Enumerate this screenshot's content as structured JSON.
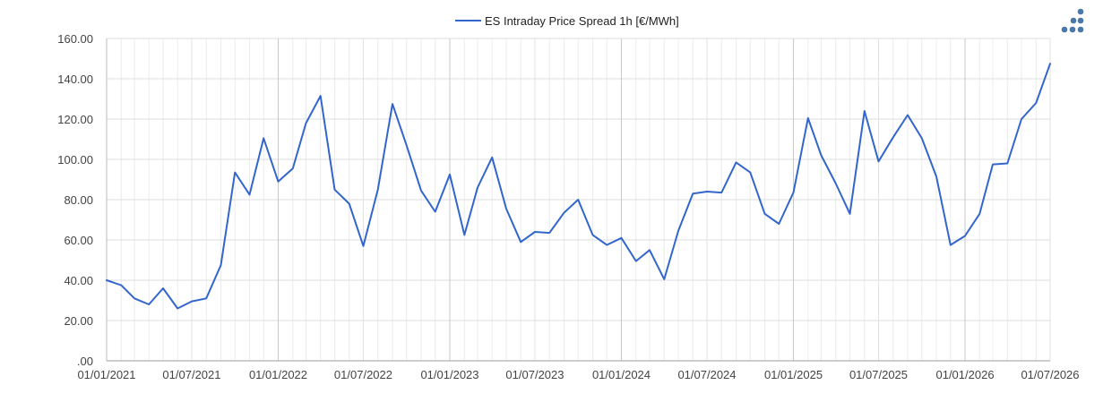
{
  "chart_data": {
    "type": "line",
    "title": "",
    "xlabel": "",
    "ylabel": "",
    "legend_position": "top-center",
    "grid": true,
    "line_color": "#3366cc",
    "y_range": [
      0,
      160
    ],
    "x_range": [
      "01/01/2021",
      "01/07/2026"
    ],
    "y_ticks": [
      0,
      20,
      40,
      60,
      80,
      100,
      120,
      140,
      160
    ],
    "y_tick_labels": [
      ".00",
      "20.00",
      "40.00",
      "60.00",
      "80.00",
      "100.00",
      "120.00",
      "140.00",
      "160.00"
    ],
    "x_tick_labels": [
      "01/01/2021",
      "01/07/2021",
      "01/01/2022",
      "01/07/2022",
      "01/01/2023",
      "01/07/2023",
      "01/01/2024",
      "01/07/2024",
      "01/01/2025",
      "01/07/2025",
      "01/01/2026",
      "01/07/2026"
    ],
    "series": [
      {
        "name": "ES Intraday Price Spread 1h [€/MWh]",
        "x": [
          "01/01/2021",
          "01/02/2021",
          "01/03/2021",
          "01/04/2021",
          "01/05/2021",
          "01/06/2021",
          "01/07/2021",
          "01/08/2021",
          "01/09/2021",
          "01/10/2021",
          "01/11/2021",
          "01/12/2021",
          "01/01/2022",
          "01/02/2022",
          "01/03/2022",
          "01/04/2022",
          "01/05/2022",
          "01/06/2022",
          "01/07/2022",
          "01/08/2022",
          "01/09/2022",
          "01/10/2022",
          "01/11/2022",
          "01/12/2022",
          "01/01/2023",
          "01/02/2023",
          "01/03/2023",
          "01/04/2023",
          "01/05/2023",
          "01/06/2023",
          "01/07/2023",
          "01/08/2023",
          "01/09/2023",
          "01/10/2023",
          "01/11/2023",
          "01/12/2023",
          "01/01/2024",
          "01/02/2024",
          "01/03/2024",
          "01/04/2024",
          "01/05/2024",
          "01/06/2024",
          "01/07/2024",
          "01/08/2024",
          "01/09/2024",
          "01/10/2024",
          "01/11/2024",
          "01/12/2024",
          "01/01/2025",
          "01/02/2025",
          "01/03/2025",
          "01/04/2025",
          "01/05/2025",
          "01/06/2025",
          "01/07/2025",
          "01/08/2025",
          "01/09/2025",
          "01/10/2025",
          "01/11/2025",
          "01/12/2025",
          "01/01/2026",
          "01/02/2026",
          "01/03/2026",
          "01/04/2026",
          "01/05/2026",
          "01/06/2026",
          "01/07/2026"
        ],
        "values": [
          40.0,
          37.5,
          31.0,
          28.0,
          36.0,
          26.0,
          29.5,
          31.0,
          47.5,
          93.5,
          82.5,
          110.5,
          89.0,
          95.5,
          118.0,
          131.5,
          85.0,
          78.0,
          57.0,
          85.0,
          127.5,
          107.0,
          84.5,
          74.0,
          92.5,
          62.5,
          86.0,
          101.0,
          75.5,
          59.0,
          64.0,
          63.5,
          73.5,
          80.0,
          62.5,
          57.5,
          61.0,
          49.5,
          55.0,
          40.5,
          64.5,
          83.0,
          84.0,
          83.5,
          98.5,
          93.5,
          73.0,
          68.0,
          83.5,
          120.5,
          102.0,
          88.0,
          73.0,
          124.0,
          99.0,
          111.0,
          122.0,
          110.5,
          91.5,
          57.5,
          62.0,
          73.0,
          97.5,
          98.0,
          120.0,
          128.0,
          147.5
        ]
      }
    ]
  }
}
